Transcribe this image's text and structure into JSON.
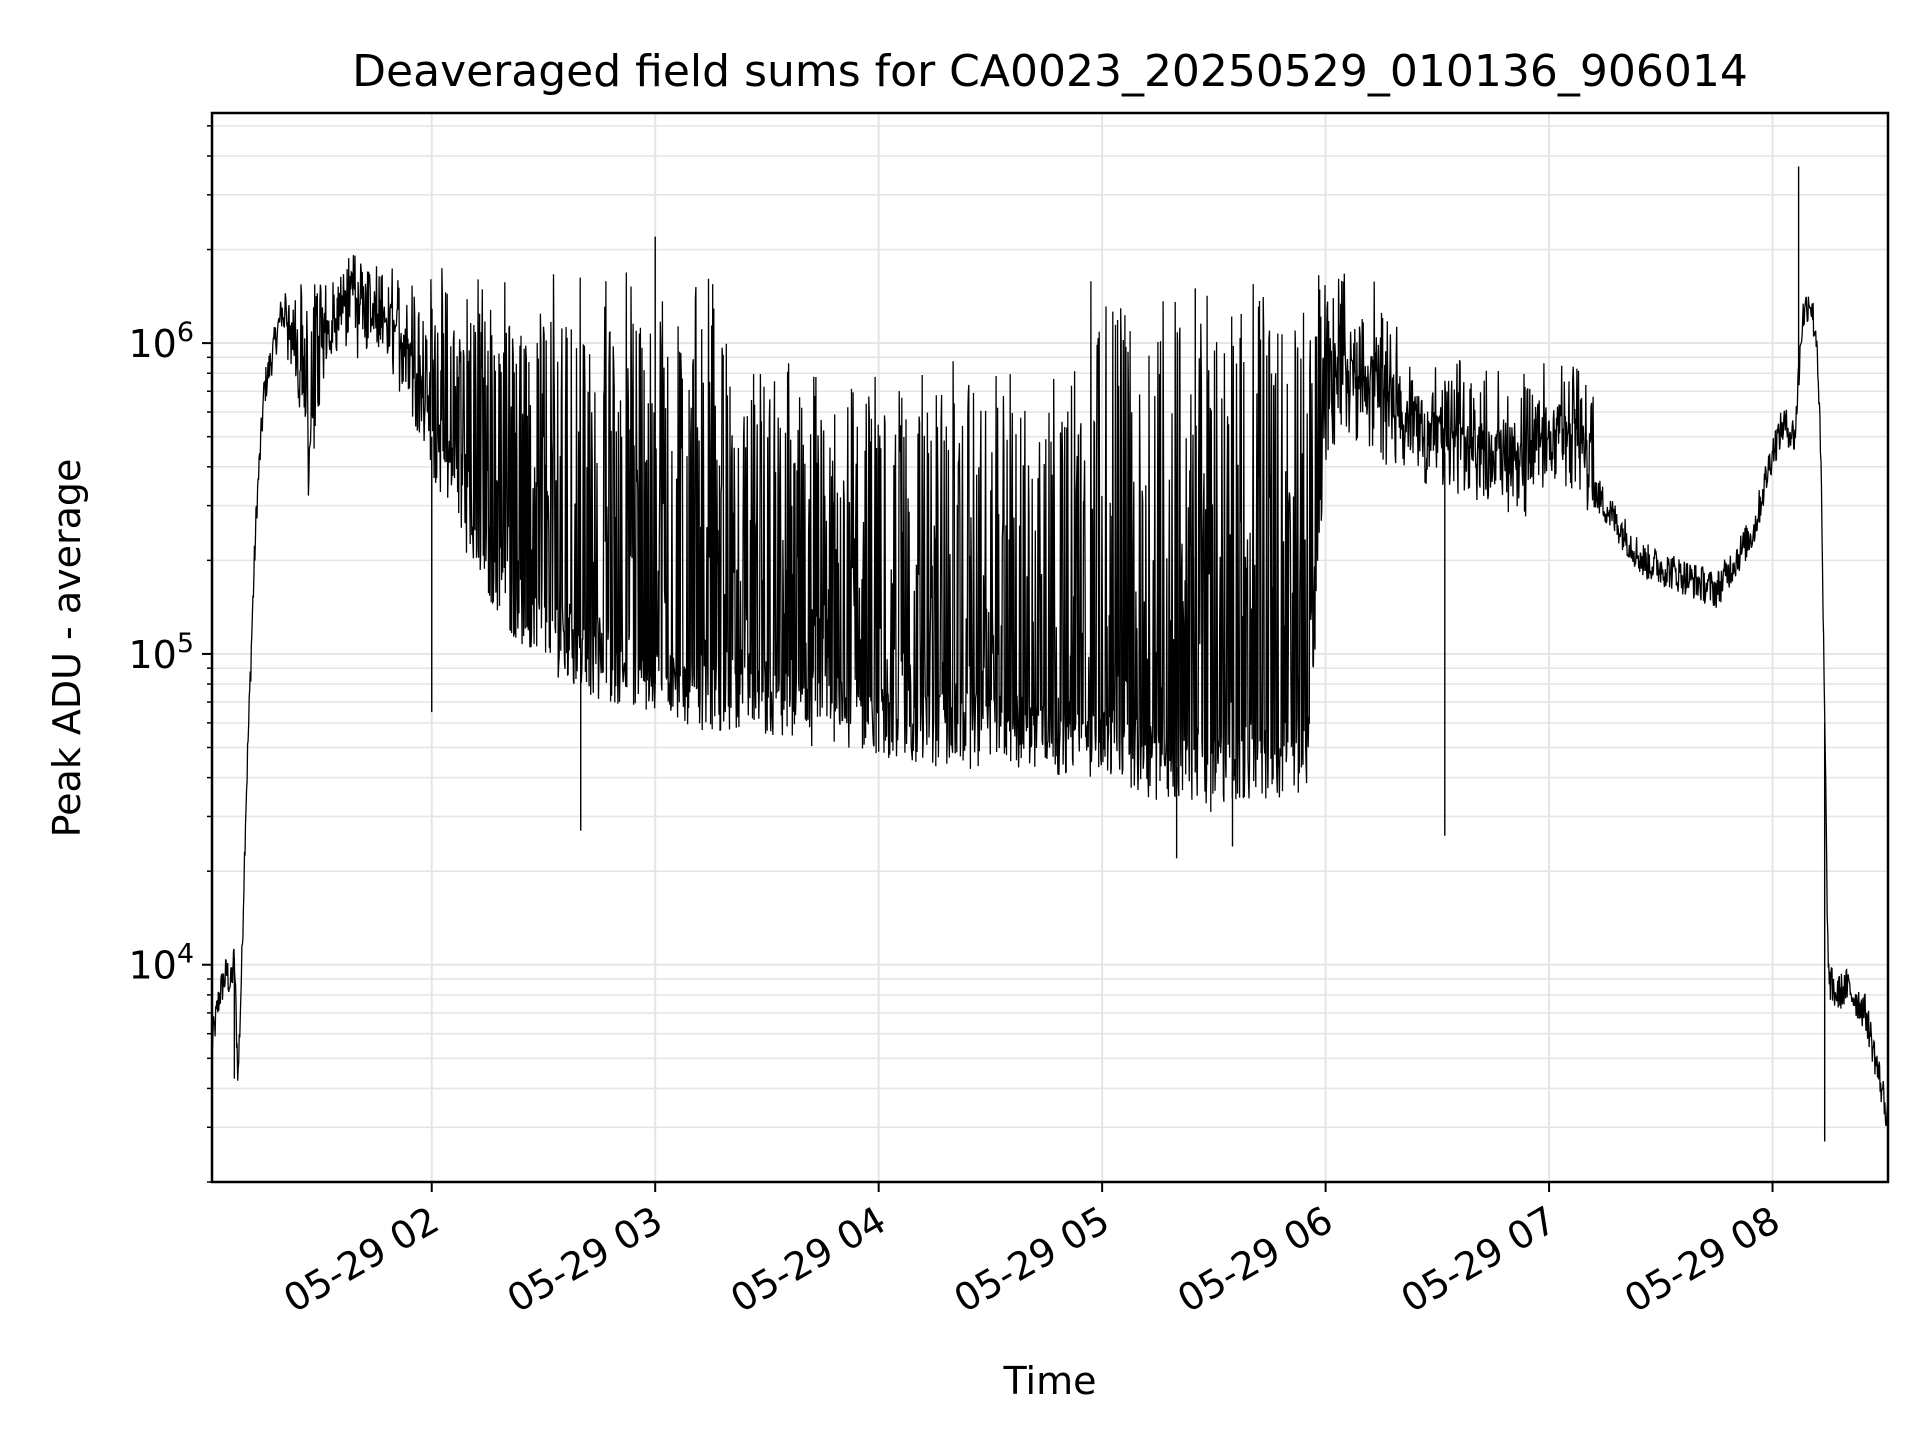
{
  "chart_data": {
    "type": "line",
    "title": "Deaveraged field sums for CA0023_20250529_010136_906014",
    "xlabel": "Time",
    "ylabel": "Peak ADU - average",
    "x_start": "2025-05-29 01:01",
    "x_end": "2025-05-29 08:31",
    "xlim": [
      "05-29 01:01",
      "05-29 08:31"
    ],
    "ylim": [
      2000,
      5500000
    ],
    "y_scale": "log",
    "x_tick_labels": [
      "05-29 02",
      "05-29 03",
      "05-29 04",
      "05-29 05",
      "05-29 06",
      "05-29 07",
      "05-29 08"
    ],
    "y_tick_labels": [
      {
        "base": "10",
        "exp": "4",
        "value": 10000
      },
      {
        "base": "10",
        "exp": "5",
        "value": 100000
      },
      {
        "base": "10",
        "exp": "6",
        "value": 1000000
      }
    ],
    "grid": true,
    "line_color": "#000000",
    "grid_color": "#e5e5e5",
    "series": [
      {
        "x": [
          "01:01",
          "01:03",
          "01:05",
          "01:06",
          "01:07",
          "01:08",
          "01:09",
          "01:10",
          "01:12",
          "01:13",
          "01:15",
          "01:20",
          "01:23",
          "01:25",
          "01:27",
          "01:29",
          "01:32",
          "01:36",
          "01:40",
          "01:44",
          "01:48",
          "01:52",
          "01:56",
          "02:00",
          "02:08",
          "02:15",
          "02:22",
          "02:30",
          "02:40",
          "02:50",
          "03:00",
          "03:15",
          "03:30",
          "03:45",
          "04:00",
          "04:15",
          "04:30",
          "04:45",
          "05:00",
          "05:15",
          "05:30",
          "05:40",
          "05:50",
          "05:55",
          "06:00",
          "06:05",
          "06:15",
          "06:30",
          "06:45",
          "06:55",
          "07:00",
          "07:05",
          "07:15",
          "07:25",
          "07:35",
          "07:45",
          "07:55",
          "08:00",
          "08:03",
          "08:06",
          "08:08",
          "08:10",
          "08:12",
          "08:13",
          "08:14",
          "08:15",
          "08:17",
          "08:20",
          "08:25",
          "08:31"
        ],
        "y": [
          5500,
          8000,
          9500,
          8500,
          10500,
          4300,
          10000,
          30000,
          150000,
          300000,
          700000,
          1300000,
          900000,
          600000,
          400000,
          700000,
          1100000,
          1400000,
          1500000,
          1300000,
          1100000,
          900000,
          700000,
          500000,
          300000,
          200000,
          150000,
          120000,
          100000,
          90000,
          80000,
          75000,
          70000,
          65000,
          60000,
          58000,
          56000,
          55000,
          52000,
          45000,
          40000,
          45000,
          45000,
          50000,
          500000,
          700000,
          550000,
          450000,
          400000,
          350000,
          500000,
          450000,
          300000,
          200000,
          180000,
          160000,
          250000,
          450000,
          550000,
          500000,
          1200000,
          1400000,
          1000000,
          400000,
          60000,
          9000,
          8000,
          8500,
          7000,
          3200
        ]
      }
    ],
    "spikes": [
      {
        "x": "01:07",
        "y": 4300
      },
      {
        "x": "02:00",
        "y": 65000
      },
      {
        "x": "02:40",
        "y": 27000
      },
      {
        "x": "03:00",
        "y": 2200000
      },
      {
        "x": "05:20",
        "y": 22000
      },
      {
        "x": "05:25",
        "y": 1500000
      },
      {
        "x": "05:35",
        "y": 24000
      },
      {
        "x": "06:32",
        "y": 26000
      },
      {
        "x": "08:07",
        "y": 3700000
      },
      {
        "x": "08:14",
        "y": 2700
      }
    ]
  }
}
